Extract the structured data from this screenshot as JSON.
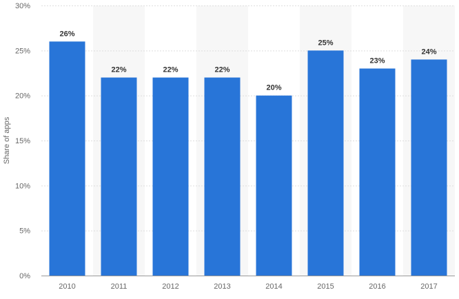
{
  "chart_data": {
    "type": "bar",
    "categories": [
      "2010",
      "2011",
      "2012",
      "2013",
      "2014",
      "2015",
      "2016",
      "2017"
    ],
    "values": [
      26,
      22,
      22,
      22,
      20,
      25,
      23,
      24
    ],
    "data_labels": [
      "26%",
      "22%",
      "22%",
      "22%",
      "20%",
      "25%",
      "23%",
      "24%"
    ],
    "title": "",
    "xlabel": "",
    "ylabel": "Share of apps",
    "ylim": [
      0,
      30
    ],
    "yticks": [
      0,
      5,
      10,
      15,
      20,
      25,
      30
    ],
    "ytick_labels": [
      "0%",
      "5%",
      "10%",
      "15%",
      "20%",
      "25%",
      "30%"
    ],
    "grid": true,
    "alternating_column_bands": true,
    "colors": {
      "bar": "#2875d8",
      "band": "#f7f7f7",
      "grid": "#dddddd",
      "axis": "#999999"
    }
  }
}
